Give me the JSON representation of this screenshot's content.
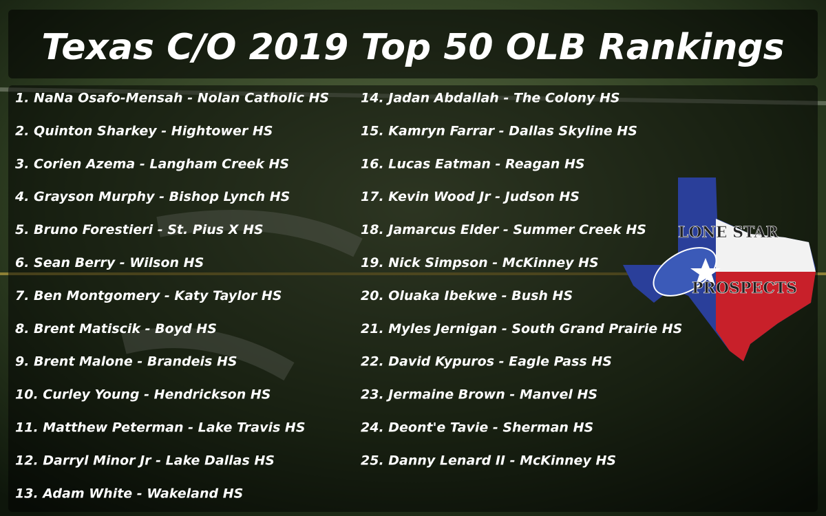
{
  "header": {
    "title": "Texas C/O 2019 Top 50 OLB Rankings"
  },
  "rankings": {
    "left": [
      "1. NaNa Osafo-Mensah - Nolan Catholic HS",
      "2. Quinton Sharkey - Hightower HS",
      "3. Corien Azema - Langham Creek HS",
      "4. Grayson Murphy - Bishop Lynch HS",
      "5. Bruno Forestieri - St. Pius X HS",
      "6. Sean Berry - Wilson HS",
      "7. Ben Montgomery - Katy Taylor HS",
      "8. Brent Matiscik - Boyd HS",
      "9. Brent Malone - Brandeis HS",
      "10. Curley Young - Hendrickson HS",
      "11. Matthew Peterman - Lake Travis HS",
      "12. Darryl Minor Jr - Lake Dallas HS",
      "13. Adam White - Wakeland HS"
    ],
    "right": [
      "14. Jadan Abdallah - The Colony HS",
      "15. Kamryn Farrar - Dallas Skyline HS",
      "16. Lucas Eatman - Reagan HS",
      "17. Kevin Wood Jr - Judson HS",
      "18. Jamarcus Elder - Summer Creek HS",
      "19. Nick Simpson - McKinney HS",
      "20. Oluaka Ibekwe - Bush HS",
      "21. Myles Jernigan - South Grand Prairie HS",
      "22. David Kypuros - Eagle Pass HS",
      "23. Jermaine Brown - Manvel HS",
      "24. Deont'e Tavie - Sherman HS",
      "25. Danny Lenard II - McKinney HS"
    ]
  },
  "logo": {
    "line1": "LONE STAR",
    "line2": "PROSPECTS"
  }
}
